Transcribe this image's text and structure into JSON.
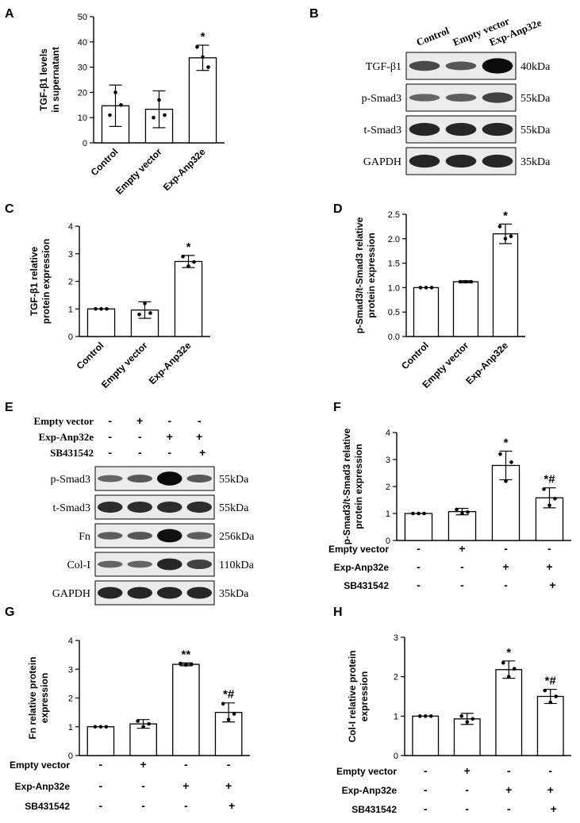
{
  "panels": {
    "A": "A",
    "B": "B",
    "C": "C",
    "D": "D",
    "E": "E",
    "F": "F",
    "G": "G",
    "H": "H"
  },
  "blot_b": {
    "lanes": [
      "Control",
      "Empty vector",
      "Exp-Anp32e"
    ],
    "rows": [
      {
        "label": "TGF-β1",
        "kda": "40kDa",
        "bands": [
          0.55,
          0.45,
          1.0
        ]
      },
      {
        "label": "p-Smad3",
        "kda": "55kDa",
        "bands": [
          0.35,
          0.4,
          0.6
        ]
      },
      {
        "label": "t-Smad3",
        "kda": "55kDa",
        "bands": [
          0.8,
          0.8,
          0.8
        ]
      },
      {
        "label": "GAPDH",
        "kda": "35kDa",
        "bands": [
          0.8,
          0.8,
          0.8
        ]
      }
    ]
  },
  "blot_e": {
    "treatments": [
      {
        "label": "Empty vector",
        "marks": [
          "-",
          "+",
          "-",
          "-"
        ]
      },
      {
        "label": "Exp-Anp32e",
        "marks": [
          "-",
          "-",
          "+",
          "+"
        ]
      },
      {
        "label": "SB431542",
        "marks": [
          "-",
          "-",
          "-",
          "+"
        ]
      }
    ],
    "rows": [
      {
        "label": "p-Smad3",
        "kda": "55kDa",
        "bands": [
          0.35,
          0.45,
          1.0,
          0.45
        ]
      },
      {
        "label": "t-Smad3",
        "kda": "55kDa",
        "bands": [
          0.75,
          0.75,
          0.75,
          0.75
        ]
      },
      {
        "label": "Fn",
        "kda": "256kDa",
        "bands": [
          0.4,
          0.45,
          0.95,
          0.4
        ]
      },
      {
        "label": "Col-I",
        "kda": "110kDa",
        "bands": [
          0.35,
          0.35,
          0.8,
          0.6
        ]
      },
      {
        "label": "GAPDH",
        "kda": "35kDa",
        "bands": [
          0.8,
          0.8,
          0.8,
          0.8
        ]
      }
    ]
  },
  "treatment_rows": [
    {
      "label": "Empty vector",
      "marks": [
        "-",
        "+",
        "-",
        "-"
      ]
    },
    {
      "label": "Exp-Anp32e",
      "marks": [
        "-",
        "-",
        "+",
        "+"
      ]
    },
    {
      "label": "SB431542",
      "marks": [
        "-",
        "-",
        "-",
        "+"
      ]
    }
  ],
  "chart_data": [
    {
      "panel": "A",
      "type": "bar",
      "categories": [
        "Control",
        "Empty vector",
        "Exp-Anp32e"
      ],
      "values": [
        14.7,
        13.3,
        33.7
      ],
      "errors": [
        8.2,
        7.3,
        5.0
      ],
      "points": [
        [
          11,
          20,
          15
        ],
        [
          10,
          17,
          11
        ],
        [
          38,
          34,
          30
        ]
      ],
      "annotations": [
        "",
        "",
        "*"
      ],
      "ylabel": "TGF-β1 levels in supernatant",
      "ylim": [
        0,
        50
      ],
      "yticks": [
        0,
        10,
        20,
        30,
        40,
        50
      ]
    },
    {
      "panel": "C",
      "type": "bar",
      "categories": [
        "Control",
        "Empty vector",
        "Exp-Anp32e"
      ],
      "values": [
        1.0,
        0.96,
        2.72
      ],
      "errors": [
        0.0,
        0.3,
        0.22
      ],
      "points": [
        [
          1,
          1,
          1
        ],
        [
          0.8,
          1.2,
          0.85
        ],
        [
          2.9,
          2.55,
          2.7
        ]
      ],
      "annotations": [
        "",
        "",
        "*"
      ],
      "ylabel": "TGF-β1 relative protein expression",
      "ylim": [
        0,
        4
      ],
      "yticks": [
        0,
        1,
        2,
        3,
        4
      ]
    },
    {
      "panel": "D",
      "type": "bar",
      "categories": [
        "Control",
        "Empty vector",
        "Exp-Anp32e"
      ],
      "values": [
        1.0,
        1.12,
        2.1
      ],
      "errors": [
        0.0,
        0.02,
        0.2
      ],
      "points": [
        [
          1,
          1,
          1
        ],
        [
          1.12,
          1.12,
          1.12
        ],
        [
          2.25,
          2.0,
          2.05
        ]
      ],
      "annotations": [
        "",
        "",
        "*"
      ],
      "ylabel": "p-Smad3/t-Smad3 relative protein expression",
      "ylim": [
        0,
        2.5
      ],
      "yticks": [
        "0.0",
        "0.5",
        "1.0",
        "1.5",
        "2.0",
        "2.5"
      ]
    },
    {
      "panel": "F",
      "type": "bar",
      "values": [
        1.0,
        1.07,
        2.78,
        1.58
      ],
      "errors": [
        0.0,
        0.12,
        0.53,
        0.37
      ],
      "points": [
        [
          1,
          1,
          1
        ],
        [
          1.15,
          1.0,
          1.05
        ],
        [
          3.2,
          2.2,
          2.9
        ],
        [
          1.9,
          1.3,
          1.55
        ]
      ],
      "annotations": [
        "",
        "",
        "*",
        "*#"
      ],
      "ylabel": "p-Smad3/t-Smad3 relative protein expression",
      "ylim": [
        0,
        4
      ],
      "yticks": [
        0,
        1,
        2,
        3,
        4
      ]
    },
    {
      "panel": "G",
      "type": "bar",
      "values": [
        1.0,
        1.1,
        3.17,
        1.5
      ],
      "errors": [
        0.0,
        0.15,
        0.05,
        0.33
      ],
      "points": [
        [
          1,
          1,
          1
        ],
        [
          1.2,
          1.0,
          1.1
        ],
        [
          3.2,
          3.15,
          3.17
        ],
        [
          1.8,
          1.25,
          1.45
        ]
      ],
      "annotations": [
        "",
        "",
        "**",
        "*#"
      ],
      "ylabel": "Fn relative protein expression",
      "ylim": [
        0,
        4
      ],
      "yticks": [
        0,
        1,
        2,
        3,
        4
      ]
    },
    {
      "panel": "H",
      "type": "bar",
      "values": [
        1.0,
        0.93,
        2.18,
        1.5
      ],
      "errors": [
        0.0,
        0.14,
        0.22,
        0.18
      ],
      "points": [
        [
          1,
          1,
          1
        ],
        [
          1.0,
          0.85,
          0.93
        ],
        [
          2.35,
          2.0,
          2.2
        ],
        [
          1.65,
          1.35,
          1.5
        ]
      ],
      "annotations": [
        "",
        "",
        "*",
        "*#"
      ],
      "ylabel": "Col-I relative protein expression",
      "ylim": [
        0,
        3
      ],
      "yticks": [
        0,
        1,
        2,
        3
      ]
    }
  ]
}
